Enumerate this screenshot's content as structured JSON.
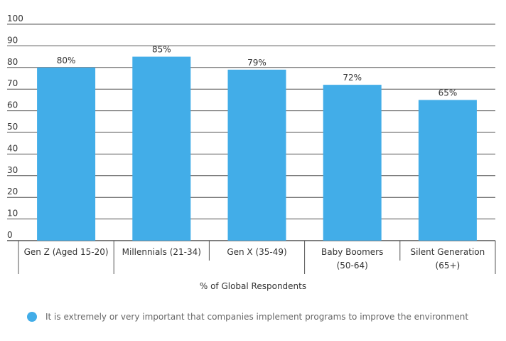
{
  "chart_data": {
    "type": "bar",
    "categories": [
      [
        "Gen Z (Aged 15-20)"
      ],
      [
        "Millennials (21-34)"
      ],
      [
        "Gen X (35-49)"
      ],
      [
        "Baby Boomers",
        "(50-64)"
      ],
      [
        "Silent Generation",
        "(65+)"
      ]
    ],
    "series": [
      {
        "name": "It is extremely or very important that companies implement programs to improve the environment",
        "values": [
          80,
          85,
          79,
          72,
          65
        ],
        "data_labels": [
          "80%",
          "85%",
          "79%",
          "72%",
          "65%"
        ],
        "color": "#42ade8"
      }
    ],
    "title": "",
    "xlabel": "% of Global Respondents",
    "ylabel": "",
    "ylim": [
      0,
      100
    ],
    "yticks": [
      0,
      10,
      20,
      30,
      40,
      50,
      60,
      70,
      80,
      90,
      100
    ],
    "grid": true,
    "legend_position": "bottom-left"
  },
  "colors": {
    "bar": "#42ade8",
    "grid": "#555555",
    "axis_text": "#333333",
    "legend_text": "#666666"
  }
}
